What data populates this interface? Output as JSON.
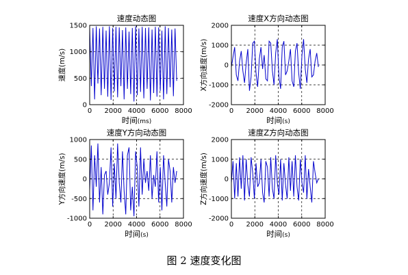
{
  "figure": {
    "caption": "图 2  速度变化图"
  },
  "chart_data": [
    {
      "type": "line",
      "title": "速度动态图",
      "xlabel_main": "时间",
      "xlabel_unit": "(ms)",
      "ylabel": "速度(m/s)",
      "xlim": [
        0,
        8000
      ],
      "ylim": [
        0,
        1500
      ],
      "xticks": [
        0,
        2000,
        4000,
        6000,
        8000
      ],
      "yticks": [
        0,
        500,
        1000,
        1500
      ],
      "grid": true,
      "color": "#0000cc",
      "x": [
        0,
        140,
        280,
        420,
        560,
        700,
        840,
        980,
        1120,
        1260,
        1400,
        1540,
        1680,
        1820,
        1960,
        2100,
        2240,
        2380,
        2520,
        2660,
        2800,
        2940,
        3080,
        3220,
        3360,
        3500,
        3640,
        3780,
        3920,
        4060,
        4200,
        4340,
        4480,
        4620,
        4760,
        4900,
        5040,
        5180,
        5320,
        5460,
        5600,
        5740,
        5880,
        6020,
        6160,
        6300,
        6440,
        6580,
        6720,
        6860,
        7000,
        7140,
        7280,
        7420
      ],
      "y": [
        1460,
        350,
        1450,
        100,
        1480,
        400,
        1440,
        180,
        1470,
        300,
        1400,
        150,
        1480,
        90,
        1450,
        250,
        1470,
        140,
        1460,
        350,
        1410,
        100,
        1460,
        300,
        1380,
        200,
        1450,
        60,
        1480,
        180,
        1440,
        240,
        1470,
        120,
        1450,
        300,
        1460,
        80,
        1420,
        220,
        1470,
        150,
        1460,
        260,
        1400,
        100,
        1480,
        200,
        1450,
        330,
        1420,
        160,
        1440,
        450
      ]
    },
    {
      "type": "line",
      "title": "速度X方向动态图",
      "xlabel_main": "时间",
      "xlabel_unit": "(s)",
      "ylabel": "X方向速度(m/s)",
      "xlim": [
        0,
        8000
      ],
      "ylim": [
        -2000,
        2000
      ],
      "xticks": [
        0,
        2000,
        4000,
        6000,
        8000
      ],
      "yticks": [
        -2000,
        -1000,
        0,
        1000,
        2000
      ],
      "grid": true,
      "color": "#0000cc",
      "x": [
        0,
        140,
        280,
        420,
        560,
        700,
        840,
        980,
        1120,
        1260,
        1400,
        1540,
        1680,
        1820,
        1960,
        2100,
        2240,
        2380,
        2520,
        2660,
        2800,
        2940,
        3080,
        3220,
        3360,
        3500,
        3640,
        3780,
        3920,
        4060,
        4200,
        4340,
        4480,
        4620,
        4760,
        4900,
        5040,
        5180,
        5320,
        5460,
        5600,
        5740,
        5880,
        6020,
        6160,
        6300,
        6440,
        6580,
        6720,
        6860,
        7000,
        7140,
        7280,
        7420
      ],
      "y": [
        -100,
        400,
        900,
        -500,
        -800,
        200,
        700,
        -300,
        -900,
        100,
        800,
        -1300,
        -600,
        1100,
        1200,
        -400,
        -1100,
        300,
        900,
        -200,
        500,
        -700,
        -800,
        1200,
        1100,
        -300,
        -1000,
        600,
        1300,
        -600,
        -1200,
        900,
        1200,
        -500,
        -300,
        200,
        800,
        -800,
        -1100,
        700,
        1100,
        -400,
        -1200,
        500,
        1300,
        -200,
        -900,
        300,
        800,
        -600,
        -500,
        200,
        600,
        -100
      ]
    },
    {
      "type": "line",
      "title": "速度Y方向动态图",
      "xlabel_main": "时间",
      "xlabel_unit": "(s)",
      "ylabel": "Y方向速度(m/s)",
      "xlim": [
        0,
        8000
      ],
      "ylim": [
        -1000,
        1000
      ],
      "xticks": [
        0,
        2000,
        4000,
        6000,
        8000
      ],
      "yticks": [
        -1000,
        -500,
        0,
        500,
        1000
      ],
      "grid": true,
      "color": "#0000cc",
      "x": [
        0,
        140,
        280,
        420,
        560,
        700,
        840,
        980,
        1120,
        1260,
        1400,
        1540,
        1680,
        1820,
        1960,
        2100,
        2240,
        2380,
        2520,
        2660,
        2800,
        2940,
        3080,
        3220,
        3360,
        3500,
        3640,
        3780,
        3920,
        4060,
        4200,
        4340,
        4480,
        4620,
        4760,
        4900,
        5040,
        5180,
        5320,
        5460,
        5600,
        5740,
        5880,
        6020,
        6160,
        6300,
        6440,
        6580,
        6720,
        6860,
        7000,
        7140,
        7280,
        7420
      ],
      "y": [
        -300,
        850,
        -800,
        600,
        -200,
        900,
        -600,
        300,
        -900,
        100,
        200,
        -400,
        -100,
        800,
        -700,
        400,
        -500,
        900,
        -100,
        -600,
        700,
        -300,
        -900,
        600,
        800,
        -800,
        -200,
        -950,
        700,
        300,
        -700,
        800,
        -400,
        500,
        -100,
        200,
        -300,
        600,
        -500,
        100,
        -200,
        700,
        -600,
        300,
        -800,
        600,
        -100,
        -700,
        500,
        200,
        -600,
        300,
        -100,
        200
      ]
    },
    {
      "type": "line",
      "title": "速度Z方向动态图",
      "xlabel_main": "时间",
      "xlabel_unit": "(s)",
      "ylabel": "Z方向速度(m/s)",
      "xlim": [
        0,
        8000
      ],
      "ylim": [
        -2000,
        2000
      ],
      "xticks": [
        0,
        2000,
        4000,
        6000,
        8000
      ],
      "yticks": [
        -2000,
        -1000,
        0,
        1000,
        2000
      ],
      "grid": true,
      "color": "#0000cc",
      "x": [
        0,
        140,
        280,
        420,
        560,
        700,
        840,
        980,
        1120,
        1260,
        1400,
        1540,
        1680,
        1820,
        1960,
        2100,
        2240,
        2380,
        2520,
        2660,
        2800,
        2940,
        3080,
        3220,
        3360,
        3500,
        3640,
        3780,
        3920,
        4060,
        4200,
        4340,
        4480,
        4620,
        4760,
        4900,
        5040,
        5180,
        5320,
        5460,
        5600,
        5740,
        5880,
        6020,
        6160,
        6300,
        6440,
        6580,
        6720,
        6860,
        7000,
        7140,
        7280,
        7420
      ],
      "y": [
        -200,
        900,
        -1000,
        800,
        -900,
        1100,
        -500,
        1200,
        -1100,
        1000,
        -300,
        -900,
        1100,
        300,
        -1000,
        800,
        -400,
        -200,
        1000,
        -700,
        -1200,
        900,
        600,
        -900,
        1100,
        -500,
        -1000,
        1200,
        -200,
        -800,
        1000,
        -1100,
        800,
        -300,
        -1000,
        1100,
        -600,
        900,
        -900,
        1200,
        -400,
        -1100,
        1000,
        -200,
        -700,
        1200,
        -1000,
        500,
        -400,
        -1200,
        900,
        300,
        -200,
        0
      ]
    }
  ]
}
